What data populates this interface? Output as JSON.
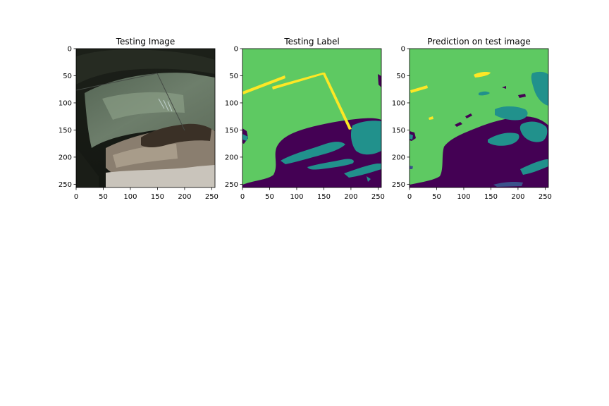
{
  "chart_data": [
    {
      "type": "image",
      "title": "Testing Image",
      "xlabel": "",
      "ylabel": "",
      "xlim": [
        0,
        256
      ],
      "ylim": [
        256,
        0
      ],
      "xticks": [
        0,
        50,
        100,
        150,
        200,
        250
      ],
      "yticks": [
        0,
        50,
        100,
        150,
        200,
        250
      ],
      "grid": false,
      "content": "satellite-rgb"
    },
    {
      "type": "heatmap",
      "title": "Testing Label",
      "xlabel": "",
      "ylabel": "",
      "xlim": [
        0,
        256
      ],
      "ylim": [
        256,
        0
      ],
      "xticks": [
        0,
        50,
        100,
        150,
        200,
        250
      ],
      "yticks": [
        0,
        50,
        100,
        150,
        200,
        250
      ],
      "grid": false,
      "colormap": "viridis",
      "classes": [
        {
          "color": "#440154"
        },
        {
          "color": "#21918c"
        },
        {
          "color": "#5ec962"
        },
        {
          "color": "#fde725"
        }
      ]
    },
    {
      "type": "heatmap",
      "title": "Prediction on test image",
      "xlabel": "",
      "ylabel": "",
      "xlim": [
        0,
        256
      ],
      "ylim": [
        256,
        0
      ],
      "xticks": [
        0,
        50,
        100,
        150,
        200,
        250
      ],
      "yticks": [
        0,
        50,
        100,
        150,
        200,
        250
      ],
      "grid": false,
      "colormap": "viridis",
      "classes": [
        {
          "color": "#440154"
        },
        {
          "color": "#3b528b"
        },
        {
          "color": "#21918c"
        },
        {
          "color": "#5ec962"
        },
        {
          "color": "#fde725"
        }
      ]
    }
  ]
}
